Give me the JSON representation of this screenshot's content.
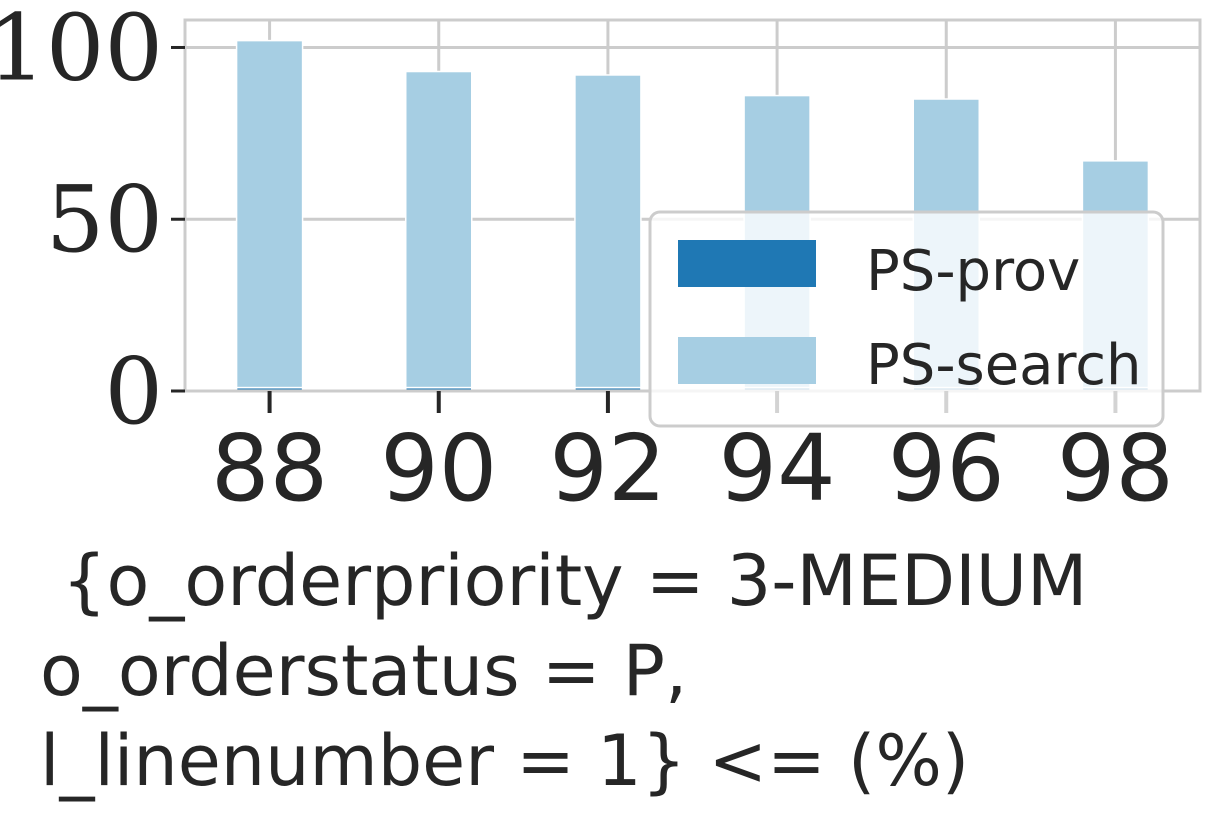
{
  "chart_data": {
    "type": "bar",
    "stacked": true,
    "categories": [
      "88",
      "90",
      "92",
      "94",
      "96",
      "98"
    ],
    "series": [
      {
        "name": "PS-prov",
        "values": [
          1,
          1,
          1,
          1,
          1,
          1
        ],
        "color": "#1f78b4"
      },
      {
        "name": "PS-search",
        "values": [
          101,
          92,
          91,
          85,
          84,
          66
        ],
        "color": "#a6cee3"
      }
    ],
    "title": "",
    "xlabel_lines": [
      "{o_orderpriority = 3-MEDIUM",
      "o_orderstatus = P,",
      "l_linenumber = 1} <= (%)"
    ],
    "ylabel": "",
    "yticks": [
      "0",
      "50",
      "100"
    ],
    "ylim": [
      0,
      108
    ],
    "grid": true,
    "legend": {
      "position": "lower-right",
      "entries": [
        "PS-prov",
        "PS-search"
      ]
    },
    "colors": {
      "grid": "#cccccc",
      "axis": "#cccccc",
      "text": "#262626",
      "prov": "#1f78b4",
      "search": "#a6cee3"
    }
  }
}
